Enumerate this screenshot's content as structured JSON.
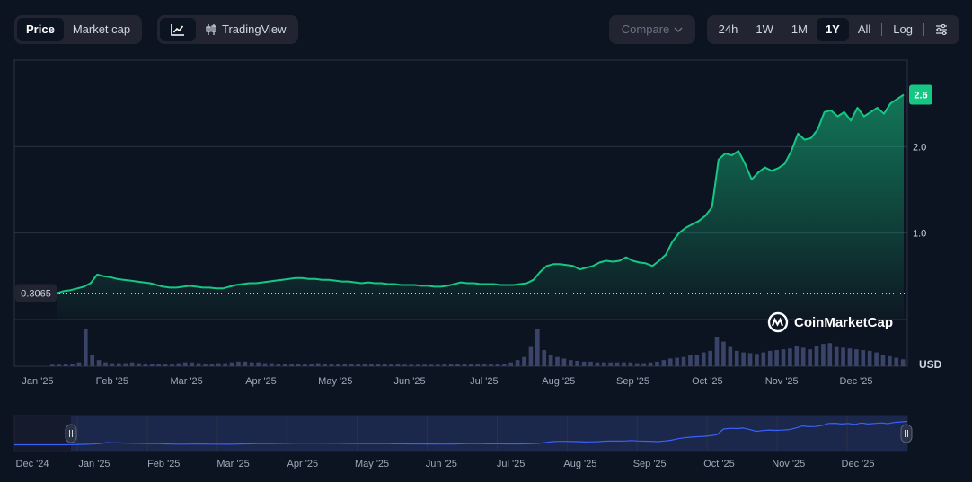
{
  "toolbar": {
    "metric_tabs": [
      {
        "label": "Price",
        "active": true
      },
      {
        "label": "Market cap",
        "active": false
      }
    ],
    "chart_type": {
      "line_icon": "line-chart-icon",
      "tradingview_label": "TradingView",
      "tradingview_icon": "candlestick-icon"
    },
    "compare_label": "Compare",
    "ranges": [
      {
        "label": "24h",
        "active": false
      },
      {
        "label": "1W",
        "active": false
      },
      {
        "label": "1M",
        "active": false
      },
      {
        "label": "1Y",
        "active": true
      },
      {
        "label": "All",
        "active": false
      }
    ],
    "log_label": "Log",
    "settings_icon": "sliders-icon"
  },
  "brand": "CoinMarketCap",
  "currency": "USD",
  "colors": {
    "background": "#0d1421",
    "line": "#16c784",
    "badge": "#16c784",
    "navigator_line": "#3861fb",
    "volume": "#3a4468"
  },
  "chart_data": {
    "type": "area",
    "x_tick_labels": [
      "Jan '25",
      "Feb '25",
      "Mar '25",
      "Apr '25",
      "May '25",
      "Jun '25",
      "Jul '25",
      "Aug '25",
      "Sep '25",
      "Oct '25",
      "Nov '25",
      "Dec '25"
    ],
    "y_ticks": [
      1.0,
      2.0
    ],
    "y_tick_labels": [
      "1.0",
      "2.0"
    ],
    "ylim": [
      0,
      3.0
    ],
    "start_price_label": "0.3065",
    "last_price_label": "2.6",
    "series": [
      {
        "values": [
          0.3065,
          0.33,
          0.34,
          0.36,
          0.38,
          0.42,
          0.52,
          0.5,
          0.49,
          0.47,
          0.46,
          0.45,
          0.44,
          0.43,
          0.42,
          0.4,
          0.38,
          0.37,
          0.37,
          0.38,
          0.39,
          0.38,
          0.37,
          0.37,
          0.36,
          0.36,
          0.38,
          0.4,
          0.41,
          0.42,
          0.42,
          0.43,
          0.44,
          0.45,
          0.46,
          0.47,
          0.48,
          0.48,
          0.47,
          0.47,
          0.46,
          0.46,
          0.45,
          0.44,
          0.44,
          0.43,
          0.42,
          0.43,
          0.42,
          0.42,
          0.41,
          0.41,
          0.4,
          0.4,
          0.4,
          0.39,
          0.39,
          0.38,
          0.38,
          0.39,
          0.41,
          0.43,
          0.42,
          0.42,
          0.41,
          0.41,
          0.41,
          0.4,
          0.4,
          0.4,
          0.41,
          0.42,
          0.46,
          0.55,
          0.62,
          0.64,
          0.64,
          0.63,
          0.62,
          0.58,
          0.6,
          0.62,
          0.66,
          0.68,
          0.67,
          0.68,
          0.72,
          0.68,
          0.66,
          0.65,
          0.62,
          0.68,
          0.75,
          0.9,
          1.0,
          1.06,
          1.1,
          1.14,
          1.2,
          1.3,
          1.85,
          1.92,
          1.9,
          1.95,
          1.8,
          1.62,
          1.7,
          1.76,
          1.72,
          1.75,
          1.8,
          1.95,
          2.15,
          2.08,
          2.1,
          2.2,
          2.4,
          2.42,
          2.35,
          2.4,
          2.3,
          2.45,
          2.35,
          2.4,
          2.45,
          2.38,
          2.5,
          2.55,
          2.6
        ]
      },
      {
        "values": [
          0.2,
          0.2,
          0.3,
          0.3,
          0.5,
          4.8,
          1.5,
          0.8,
          0.5,
          0.4,
          0.4,
          0.4,
          0.5,
          0.4,
          0.3,
          0.3,
          0.3,
          0.3,
          0.3,
          0.4,
          0.5,
          0.5,
          0.4,
          0.3,
          0.3,
          0.4,
          0.4,
          0.5,
          0.6,
          0.6,
          0.5,
          0.5,
          0.4,
          0.4,
          0.3,
          0.3,
          0.3,
          0.3,
          0.3,
          0.3,
          0.4,
          0.3,
          0.3,
          0.3,
          0.3,
          0.3,
          0.3,
          0.3,
          0.3,
          0.3,
          0.3,
          0.3,
          0.3,
          0.2,
          0.2,
          0.2,
          0.2,
          0.2,
          0.2,
          0.3,
          0.3,
          0.3,
          0.3,
          0.3,
          0.3,
          0.3,
          0.3,
          0.3,
          0.3,
          0.5,
          0.8,
          1.2,
          2.5,
          4.9,
          2.1,
          1.4,
          1.2,
          1.0,
          0.8,
          0.7,
          0.6,
          0.6,
          0.5,
          0.5,
          0.5,
          0.5,
          0.5,
          0.5,
          0.4,
          0.4,
          0.5,
          0.6,
          0.8,
          1.0,
          1.1,
          1.2,
          1.4,
          1.5,
          1.8,
          2.0,
          3.8,
          3.2,
          2.5,
          2.0,
          1.8,
          1.7,
          1.6,
          1.8,
          2.0,
          2.1,
          2.2,
          2.3,
          2.6,
          2.4,
          2.2,
          2.6,
          2.9,
          3.0,
          2.5,
          2.4,
          2.3,
          2.2,
          2.1,
          2.0,
          1.8,
          1.5,
          1.3,
          1.1,
          0.9
        ],
        "kind": "volume"
      }
    ],
    "navigator": {
      "x_tick_labels": [
        "Dec '24",
        "Jan '25",
        "Feb '25",
        "Mar '25",
        "Apr '25",
        "May '25",
        "Jun '25",
        "Jul '25",
        "Aug '25",
        "Sep '25",
        "Oct '25",
        "Nov '25",
        "Dec '25"
      ]
    },
    "grid": true
  }
}
